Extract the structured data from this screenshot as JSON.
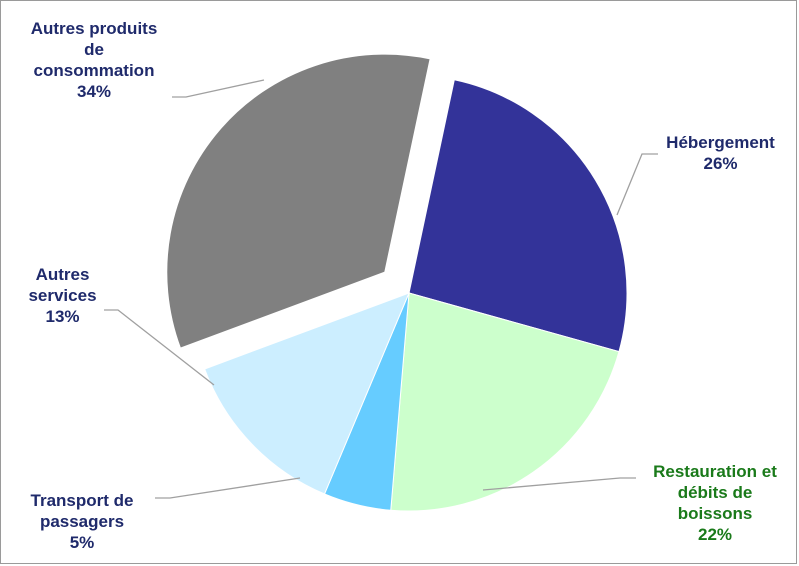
{
  "chart_data": {
    "type": "pie",
    "slices": [
      {
        "label_lines": [
          "Hébergement"
        ],
        "pct_label": "26%",
        "value": 26,
        "color": "#333399",
        "label_color": "#1f2a6b",
        "exploded": false
      },
      {
        "label_lines": [
          "Restauration et",
          "débits de",
          "boissons"
        ],
        "pct_label": "22%",
        "value": 22,
        "color": "#ccffcc",
        "label_color": "#1a7a1a",
        "exploded": false
      },
      {
        "label_lines": [
          "Transport de",
          "passagers"
        ],
        "pct_label": "5%",
        "value": 5,
        "color": "#66ccff",
        "label_color": "#1f2a6b",
        "exploded": false
      },
      {
        "label_lines": [
          "Autres",
          "services"
        ],
        "pct_label": "13%",
        "value": 13,
        "color": "#cceeff",
        "label_color": "#1f2a6b",
        "exploded": false
      },
      {
        "label_lines": [
          "Autres produits",
          "de",
          "consommation"
        ],
        "pct_label": "34%",
        "value": 34,
        "color": "#808080",
        "label_color": "#1f2a6b",
        "exploded": true
      }
    ],
    "legend": "none",
    "data_labels": "outside with leader lines"
  }
}
